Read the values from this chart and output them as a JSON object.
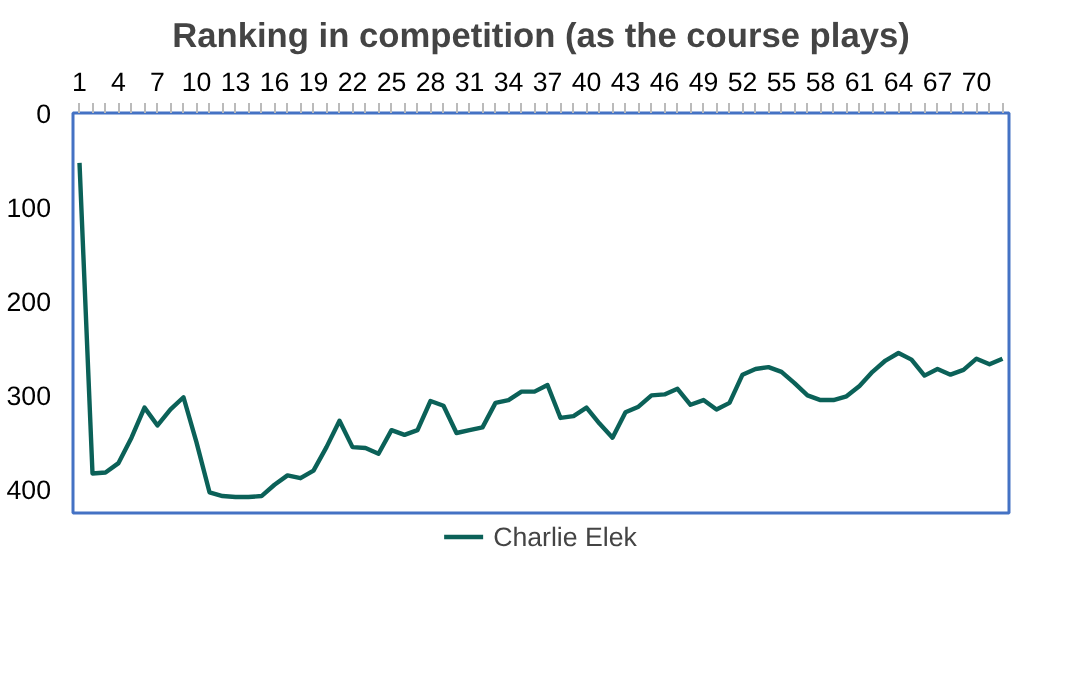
{
  "chart_data": {
    "type": "line",
    "title": "Ranking in competition (as the course plays)",
    "x": [
      1,
      2,
      3,
      4,
      5,
      6,
      7,
      8,
      9,
      10,
      11,
      12,
      13,
      14,
      15,
      16,
      17,
      18,
      19,
      20,
      21,
      22,
      23,
      24,
      25,
      26,
      27,
      28,
      29,
      30,
      31,
      32,
      33,
      34,
      35,
      36,
      37,
      38,
      39,
      40,
      41,
      42,
      43,
      44,
      45,
      46,
      47,
      48,
      49,
      50,
      51,
      52,
      53,
      54,
      55,
      56,
      57,
      58,
      59,
      60,
      61,
      62,
      63,
      64,
      65,
      66,
      67,
      68,
      69,
      70,
      71,
      72
    ],
    "series": [
      {
        "name": "Charlie Elek",
        "color": "#0b6158",
        "values": [
          53,
          383,
          382,
          372,
          345,
          313,
          332,
          315,
          302,
          350,
          403,
          407,
          408,
          408,
          407,
          395,
          385,
          388,
          380,
          355,
          327,
          355,
          356,
          362,
          337,
          342,
          337,
          306,
          311,
          340,
          337,
          334,
          308,
          305,
          296,
          296,
          289,
          324,
          322,
          313,
          330,
          345,
          318,
          312,
          300,
          299,
          293,
          310,
          305,
          315,
          308,
          278,
          272,
          270,
          275,
          287,
          300,
          305,
          305,
          301,
          290,
          275,
          263,
          255,
          262,
          279,
          272,
          278,
          273,
          261,
          267,
          261
        ]
      }
    ],
    "xlim": [
      0.5,
      72.5
    ],
    "xticks": [
      1,
      4,
      7,
      10,
      13,
      16,
      19,
      22,
      25,
      28,
      31,
      34,
      37,
      40,
      43,
      46,
      49,
      52,
      55,
      58,
      61,
      64,
      67,
      70
    ],
    "ylim": [
      425,
      0
    ],
    "yticks": [
      0,
      100,
      200,
      300,
      400
    ],
    "grid": false,
    "legend": "bottom",
    "marker": "none",
    "line_style": "solid"
  }
}
